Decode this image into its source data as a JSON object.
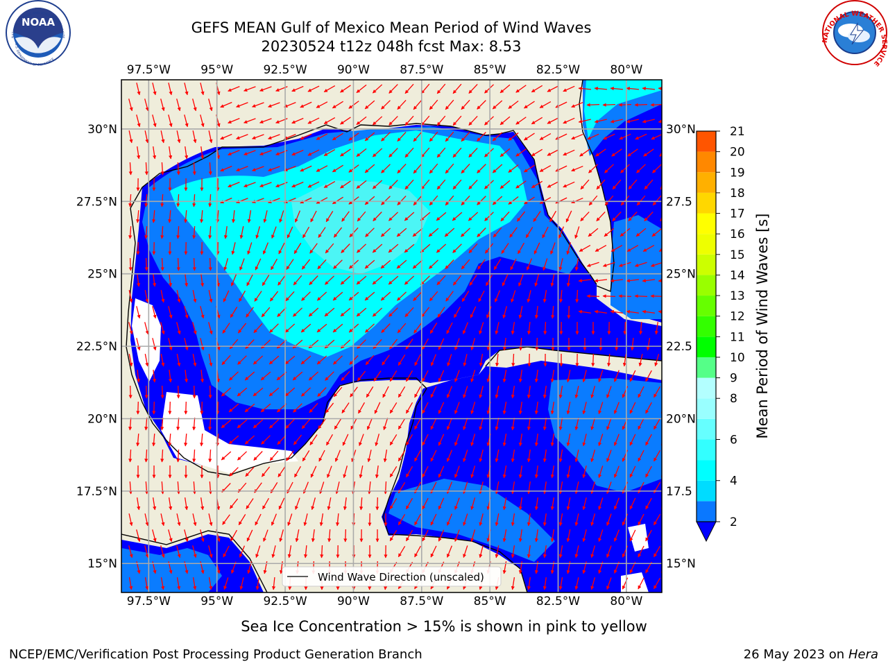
{
  "header": {
    "title_line1": "GEFS MEAN Gulf of Mexico Mean Period of Wind Waves",
    "title_line2": "20230524 t12z 048h fcst   Max: 8.53"
  },
  "logos": {
    "noaa_text": "NOAA",
    "noaa_ring_top": "NATIONAL OCEANIC AND ATMOSPHERIC ADMINISTRATION",
    "noaa_ring_bottom": "U.S. DEPARTMENT OF COMMERCE",
    "nws_ring": "NATIONAL WEATHER SERVICE"
  },
  "map": {
    "lon_range": [
      -98.5,
      -78.7
    ],
    "lat_range": [
      14.0,
      31.7
    ],
    "lon_ticks": [
      {
        "value": -97.5,
        "label": "97.5°W"
      },
      {
        "value": -95,
        "label": "95°W"
      },
      {
        "value": -92.5,
        "label": "92.5°W"
      },
      {
        "value": -90,
        "label": "90°W"
      },
      {
        "value": -87.5,
        "label": "87.5°W"
      },
      {
        "value": -85,
        "label": "85°W"
      },
      {
        "value": -82.5,
        "label": "82.5°W"
      },
      {
        "value": -80,
        "label": "80°W"
      }
    ],
    "lat_ticks_left": [
      {
        "value": 15,
        "label": "15°N"
      },
      {
        "value": 17.5,
        "label": "17.5°N"
      },
      {
        "value": 20,
        "label": "20°N"
      },
      {
        "value": 22.5,
        "label": "22.5°N"
      },
      {
        "value": 25,
        "label": "25°N"
      },
      {
        "value": 27.5,
        "label": "27.5°N"
      },
      {
        "value": 30,
        "label": "30°N"
      }
    ],
    "lat_ticks_right": [
      {
        "value": 15,
        "label": "15°N"
      },
      {
        "value": 17.5,
        "label": "17.5"
      },
      {
        "value": 20,
        "label": "20°N"
      },
      {
        "value": 22.5,
        "label": "22.5"
      },
      {
        "value": 25,
        "label": "25°N"
      },
      {
        "value": 27.5,
        "label": "27.5"
      },
      {
        "value": 30,
        "label": "30°N"
      }
    ],
    "colors": {
      "land": "#efeddb",
      "ocean_low": "#0000ff",
      "band_2_4": "#0a7cff",
      "band_4_6": "#00ffff",
      "band_6_8": "#4cf5f5",
      "arrow": "#ff0000",
      "grid": "#aaaaaa"
    },
    "legend_label": "Wind Wave Direction (unscaled)"
  },
  "colorbar": {
    "label": "Mean Period of Wind Waves [s]",
    "levels": [
      2,
      3,
      4,
      5,
      6,
      7,
      8,
      9,
      10,
      11,
      12,
      13,
      14,
      15,
      16,
      17,
      18,
      19,
      20,
      21
    ],
    "tick_labels": [
      "2",
      "4",
      "6",
      "8",
      "9",
      "10",
      "11",
      "12",
      "13",
      "14",
      "15",
      "16",
      "17",
      "18",
      "19",
      "20",
      "21"
    ],
    "colors": [
      "#0a78ff",
      "#00dcff",
      "#00ffff",
      "#33ffff",
      "#66ffff",
      "#99ffff",
      "#b3ffff",
      "#55ff88",
      "#00ff00",
      "#33ff00",
      "#66ff00",
      "#99ff00",
      "#ccff00",
      "#eeff00",
      "#ffff00",
      "#ffd700",
      "#ffb000",
      "#ff8800",
      "#ff5500",
      "#ff2200",
      "#ff0000"
    ]
  },
  "footer": {
    "caption": "Sea Ice Concentration > 15% is shown in pink to yellow",
    "credit_left": "NCEP/EMC/Verification Post Processing Product Generation Branch",
    "credit_right_prefix": "26 May 2023 on",
    "credit_right_host": "Hera"
  }
}
